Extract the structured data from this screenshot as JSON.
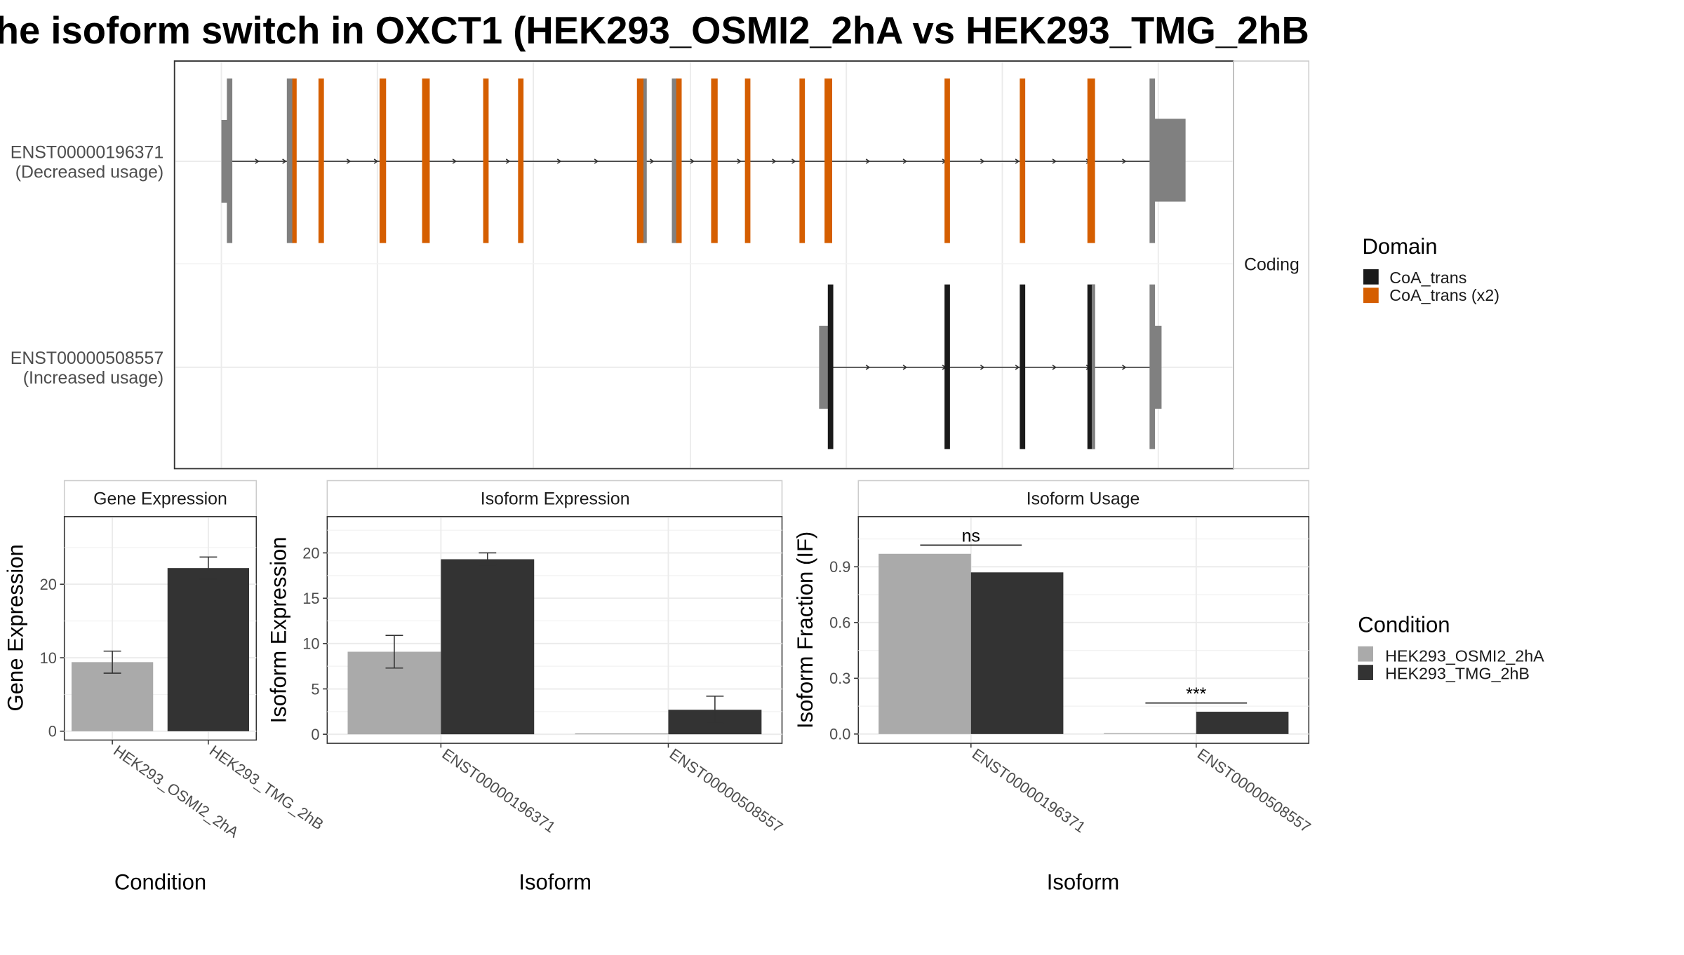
{
  "title": "he isoform switch in OXCT1 (HEK293_OSMI2_2hA vs HEK293_TMG_2hB",
  "colors": {
    "domain_coa_trans": "#1a1a1a",
    "domain_coa_trans_x2": "#d55e00",
    "non_domain": "#808080",
    "cond_a": "#aaaaaa",
    "cond_b": "#333333"
  },
  "transcript_panel": {
    "strip_label": "Coding",
    "transcripts": [
      {
        "id": "ENST00000196371",
        "usage": "(Decreased usage)"
      },
      {
        "id": "ENST00000508557",
        "usage": "(Increased usage)"
      }
    ]
  },
  "domain_legend": {
    "title": "Domain",
    "items": [
      {
        "label": "CoA_trans",
        "color": "#1a1a1a"
      },
      {
        "label": "CoA_trans (x2)",
        "color": "#d55e00"
      }
    ]
  },
  "condition_legend": {
    "title": "Condition",
    "items": [
      {
        "label": "HEK293_OSMI2_2hA",
        "color": "#aaaaaa"
      },
      {
        "label": "HEK293_TMG_2hB",
        "color": "#333333"
      }
    ]
  },
  "chart_data": [
    {
      "type": "bar",
      "title": "Gene Expression",
      "xlabel": "Condition",
      "ylabel": "Gene Expression",
      "categories": [
        "HEK293_OSMI2_2hA",
        "HEK293_TMG_2hB"
      ],
      "values": [
        9.4,
        22.2
      ],
      "error_low": [
        7.9,
        20.7
      ],
      "error_high": [
        10.9,
        23.7
      ],
      "yticks": [
        0,
        10,
        20
      ],
      "ylim": [
        -1.2,
        29.2
      ]
    },
    {
      "type": "bar",
      "title": "Isoform Expression",
      "xlabel": "Isoform",
      "ylabel": "Isoform Expression",
      "categories": [
        "ENST00000196371",
        "ENST00000508557"
      ],
      "series": [
        {
          "name": "HEK293_OSMI2_2hA",
          "values": [
            9.1,
            0.02
          ],
          "error_low": [
            7.3,
            0.0
          ],
          "error_high": [
            10.9,
            0.04
          ]
        },
        {
          "name": "HEK293_TMG_2hB",
          "values": [
            19.3,
            2.7
          ],
          "error_low": [
            18.7,
            1.2
          ],
          "error_high": [
            20.0,
            4.2
          ]
        }
      ],
      "yticks": [
        0,
        5,
        10,
        15,
        20
      ],
      "ylim": [
        -1.0,
        24.0
      ]
    },
    {
      "type": "bar",
      "title": "Isoform Usage",
      "xlabel": "Isoform",
      "ylabel": "Isoform Fraction (IF)",
      "categories": [
        "ENST00000196371",
        "ENST00000508557"
      ],
      "series": [
        {
          "name": "HEK293_OSMI2_2hA",
          "values": [
            0.97,
            0.0
          ]
        },
        {
          "name": "HEK293_TMG_2hB",
          "values": [
            0.87,
            0.12
          ]
        }
      ],
      "significance": [
        "ns",
        "***"
      ],
      "yticks": [
        "0.0",
        "0.3",
        "0.6",
        "0.9"
      ],
      "ylim": [
        -0.05,
        1.17
      ]
    }
  ]
}
